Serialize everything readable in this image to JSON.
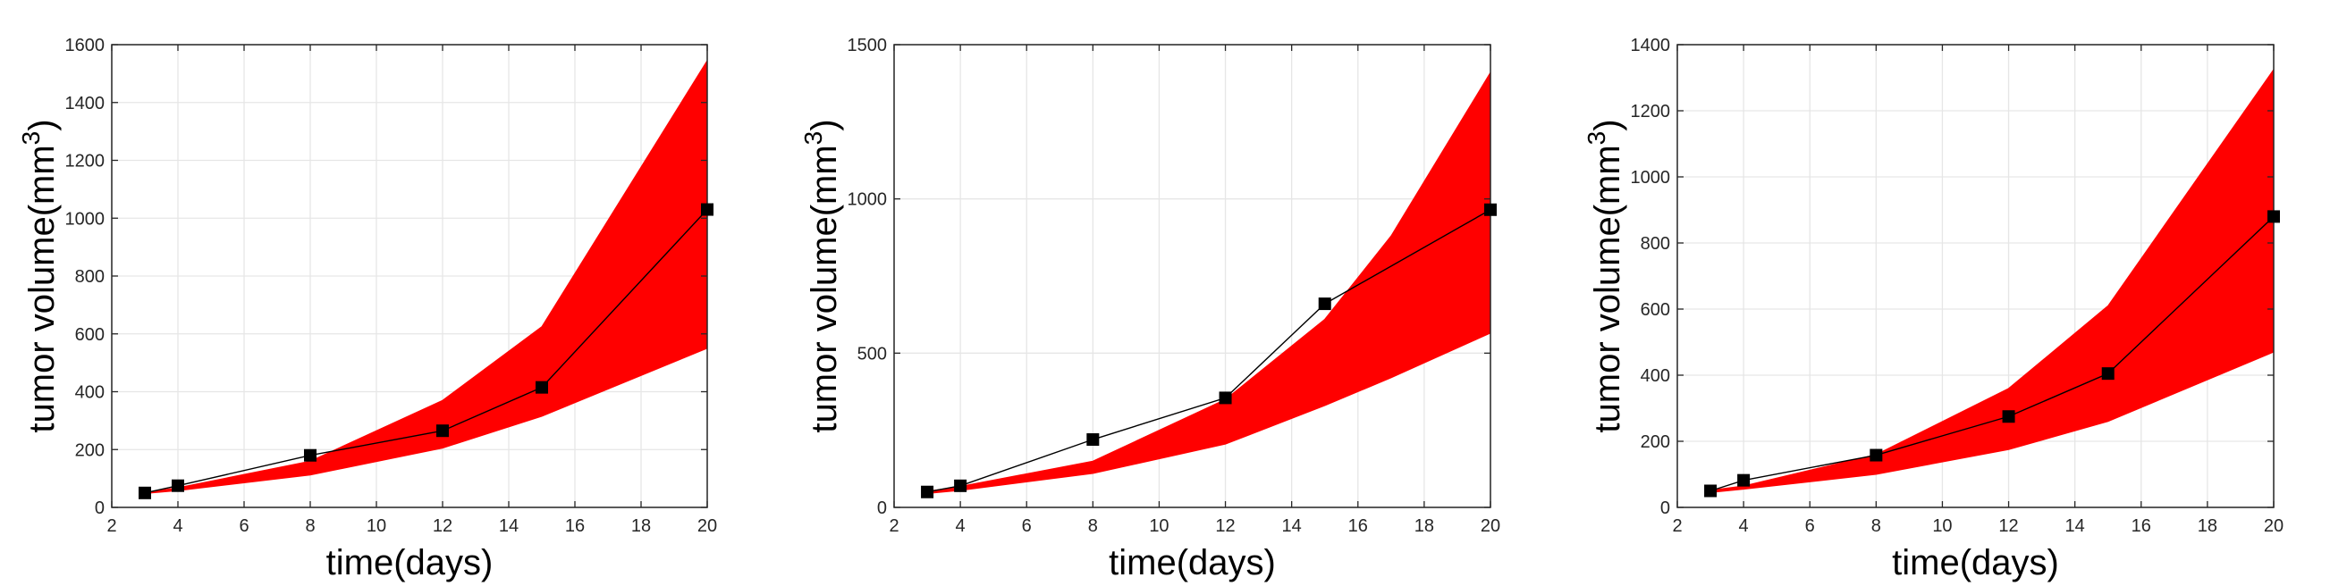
{
  "chart_data": [
    {
      "type": "area",
      "xlabel": "time(days)",
      "ylabel": "tumor volume(mm",
      "ylabel_sup": "3",
      "ylabel_close": ")",
      "xlim": [
        2,
        20
      ],
      "ylim": [
        0,
        1600
      ],
      "xticks": [
        2,
        4,
        6,
        8,
        10,
        12,
        14,
        16,
        18,
        20
      ],
      "yticks": [
        0,
        200,
        400,
        600,
        800,
        1000,
        1200,
        1400,
        1600
      ],
      "grid": true,
      "band": {
        "color": "#ff0000",
        "x": [
          3,
          4,
          8,
          12,
          15,
          20
        ],
        "lower": [
          48,
          58,
          112,
          205,
          315,
          550
        ],
        "upper": [
          52,
          68,
          160,
          370,
          625,
          1545
        ]
      },
      "series": [
        {
          "x": [
            3,
            4,
            8,
            12,
            15,
            20
          ],
          "y": [
            50,
            75,
            180,
            265,
            415,
            1030
          ],
          "color": "#000000",
          "marker": "square"
        }
      ]
    },
    {
      "type": "area",
      "xlabel": "time(days)",
      "ylabel": "tumor volume(mm",
      "ylabel_sup": "3",
      "ylabel_close": ")",
      "xlim": [
        2,
        20
      ],
      "ylim": [
        0,
        1500
      ],
      "xticks": [
        2,
        4,
        6,
        8,
        10,
        12,
        14,
        16,
        18,
        20
      ],
      "yticks": [
        0,
        500,
        1000,
        1500
      ],
      "grid": true,
      "band": {
        "color": "#ff0000",
        "x": [
          3,
          4,
          8,
          12,
          15,
          17,
          20
        ],
        "lower": [
          45,
          55,
          110,
          205,
          330,
          420,
          565
        ],
        "upper": [
          52,
          68,
          150,
          350,
          610,
          880,
          1410
        ]
      },
      "series": [
        {
          "x": [
            3,
            4,
            8,
            12,
            15,
            20
          ],
          "y": [
            50,
            70,
            220,
            355,
            660,
            965
          ],
          "color": "#000000",
          "marker": "square"
        }
      ]
    },
    {
      "type": "area",
      "xlabel": "time(days)",
      "ylabel": "tumor volume(mm",
      "ylabel_sup": "3",
      "ylabel_close": ")",
      "xlim": [
        2,
        20
      ],
      "ylim": [
        0,
        1400
      ],
      "xticks": [
        2,
        4,
        6,
        8,
        10,
        12,
        14,
        16,
        18,
        20
      ],
      "yticks": [
        0,
        200,
        400,
        600,
        800,
        1000,
        1200,
        1400
      ],
      "grid": true,
      "band": {
        "color": "#ff0000",
        "x": [
          3,
          4,
          8,
          12,
          15,
          20
        ],
        "lower": [
          45,
          55,
          100,
          175,
          260,
          470
        ],
        "upper": [
          52,
          65,
          160,
          360,
          610,
          1325
        ]
      },
      "series": [
        {
          "x": [
            3,
            4,
            8,
            12,
            15,
            20
          ],
          "y": [
            50,
            82,
            158,
            275,
            405,
            880
          ],
          "color": "#000000",
          "marker": "square"
        }
      ]
    }
  ]
}
